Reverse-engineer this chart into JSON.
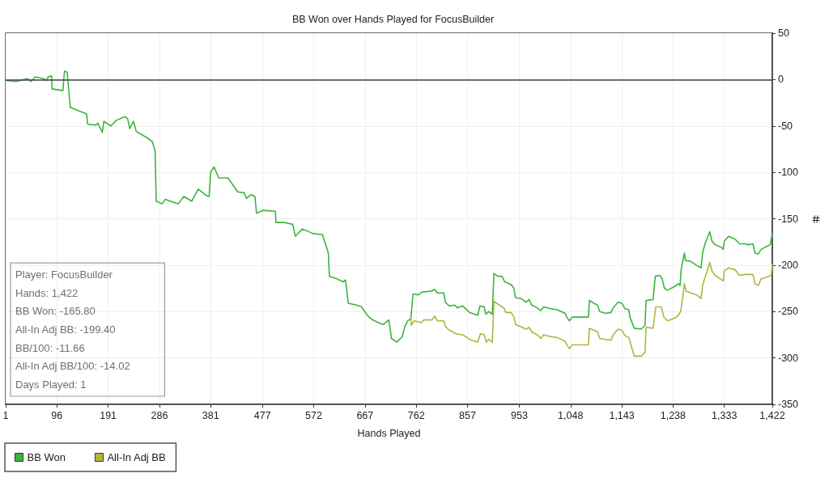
{
  "chart_data": {
    "type": "line",
    "title": "BB Won over Hands Played for FocusBuilder",
    "xlabel": "Hands Played",
    "xlim": [
      1,
      1422
    ],
    "xticks": [
      1,
      96,
      191,
      286,
      381,
      477,
      572,
      667,
      762,
      857,
      953,
      {
        "value": 1048,
        "label": "1,048"
      },
      {
        "value": 1143,
        "label": "1,143"
      },
      {
        "value": 1238,
        "label": "1,238"
      },
      {
        "value": 1333,
        "label": "1,333"
      },
      {
        "value": 1422,
        "label": "1,422"
      }
    ],
    "ylim": [
      -350,
      50
    ],
    "yticks": [
      -350,
      -300,
      -250,
      -200,
      -150,
      -100,
      -50,
      0,
      50
    ],
    "grid": true,
    "legend": "bottom left",
    "ref_lines": [
      {
        "axis": "y",
        "value": 0,
        "color": "#404040"
      }
    ],
    "annotations": [
      "Player: FocusBuilder",
      "Hands: 1,422",
      "BB Won: -165.80",
      "All-In Adj BB: -199.40",
      "BB/100: -11.66",
      "All-In Adj BB/100: -14.02",
      "Days Played: 1"
    ],
    "series": [
      {
        "name": "BB Won",
        "color": "#3cb43c",
        "x": [
          1,
          21,
          41,
          48,
          56,
          71,
          77,
          80,
          86,
          87,
          107,
          110,
          115,
          117,
          121,
          133,
          151,
          153,
          168,
          172,
          180,
          183,
          196,
          206,
          222,
          227,
          231,
          238,
          243,
          261,
          273,
          278,
          280,
          291,
          297,
          321,
          331,
          346,
          358,
          373,
          378,
          381,
          387,
          396,
          413,
          431,
          443,
          447,
          456,
          463,
          466,
          478,
          501,
          502,
          516,
          533,
          538,
          551,
          571,
          588,
          593,
          599,
          601,
          616,
          626,
          631,
          636,
          651,
          661,
          671,
          681,
          696,
          701,
          711,
          713,
          716,
          726,
          736,
          741,
          746,
          752,
          756,
          766,
          773,
          790,
          796,
          801,
          813,
          816,
          823,
          833,
          838,
          848,
          861,
          876,
          880,
          888,
          891,
          896,
          903,
          906,
          913,
          921,
          926,
          938,
          943,
          946,
          956,
          966,
          971,
          976,
          986,
          993,
          998,
          1011,
          1023,
          1038,
          1041,
          1046,
          1051,
          1081,
          1083,
          1091,
          1098,
          1102,
          1113,
          1123,
          1127,
          1136,
          1143,
          1149,
          1156,
          1158,
          1166,
          1179,
          1186,
          1188,
          1201,
          1205,
          1213,
          1218,
          1222,
          1228,
          1241,
          1248,
          1251,
          1253,
          1259,
          1261,
          1271,
          1281,
          1290,
          1293,
          1298,
          1306,
          1310,
          1316,
          1328,
          1331,
          1333,
          1341,
          1353,
          1361,
          1371,
          1378,
          1386,
          1390,
          1396,
          1401,
          1411,
          1418,
          1422
        ],
        "values": [
          -1,
          -2,
          1,
          -2,
          3,
          1,
          -1,
          3,
          4,
          -10,
          -12,
          9,
          8,
          -6,
          -30,
          -33,
          -37,
          -48,
          -49,
          -47,
          -57,
          -45,
          -50,
          -44,
          -40,
          -42,
          -53,
          -45,
          -56,
          -62,
          -67,
          -77,
          -131,
          -134,
          -129,
          -134,
          -126,
          -131,
          -118,
          -125,
          -126,
          -100,
          -94,
          -106,
          -106,
          -121,
          -122,
          -128,
          -124,
          -126,
          -144,
          -141,
          -142,
          -154,
          -154,
          -156,
          -169,
          -161,
          -166,
          -167,
          -176,
          -187,
          -212,
          -215,
          -218,
          -216,
          -241,
          -243,
          -245,
          -254,
          -259,
          -263,
          -264,
          -259,
          -266,
          -279,
          -283,
          -277,
          -266,
          -260,
          -258,
          -231,
          -232,
          -229,
          -228,
          -226,
          -230,
          -230,
          -240,
          -244,
          -243,
          -246,
          -244,
          -251,
          -254,
          -244,
          -245,
          -253,
          -250,
          -253,
          -209,
          -212,
          -212,
          -218,
          -221,
          -225,
          -235,
          -236,
          -240,
          -237,
          -243,
          -246,
          -249,
          -245,
          -247,
          -248,
          -252,
          -256,
          -260,
          -256,
          -256,
          -238,
          -241,
          -243,
          -250,
          -252,
          -251,
          -246,
          -240,
          -241,
          -247,
          -248,
          -256,
          -268,
          -269,
          -265,
          -238,
          -237,
          -212,
          -211,
          -215,
          -225,
          -227,
          -223,
          -220,
          -222,
          -205,
          -187,
          -195,
          -196,
          -200,
          -203,
          -186,
          -176,
          -164,
          -174,
          -178,
          -181,
          -183,
          -174,
          -169,
          -172,
          -177,
          -177,
          -178,
          -177,
          -187,
          -188,
          -183,
          -180,
          -178,
          -166
        ]
      },
      {
        "name": "All-In Adj BB",
        "color": "#b4b43c",
        "x": [
          752,
          753,
          758,
          771,
          776,
          791,
          796,
          801,
          813,
          816,
          823,
          836,
          848,
          861,
          876,
          881,
          888,
          892,
          896,
          903,
          906,
          916,
          924,
          928,
          938,
          943,
          946,
          966,
          971,
          976,
          986,
          993,
          998,
          1011,
          1023,
          1038,
          1041,
          1046,
          1051,
          1081,
          1083,
          1091,
          1098,
          1102,
          1113,
          1123,
          1127,
          1136,
          1143,
          1149,
          1156,
          1160,
          1166,
          1179,
          1186,
          1188,
          1201,
          1206,
          1216,
          1221,
          1228,
          1241,
          1248,
          1252,
          1256,
          1259,
          1262,
          1271,
          1281,
          1290,
          1293,
          1298,
          1306,
          1310,
          1316,
          1331,
          1333,
          1341,
          1353,
          1361,
          1371,
          1386,
          1390,
          1396,
          1401,
          1411,
          1420,
          1422
        ],
        "values": [
          -258,
          -265,
          -260,
          -262,
          -259,
          -259,
          -255,
          -260,
          -260,
          -266,
          -270,
          -274,
          -275,
          -280,
          -283,
          -274,
          -275,
          -283,
          -280,
          -283,
          -239,
          -243,
          -246,
          -251,
          -251,
          -256,
          -264,
          -269,
          -267,
          -272,
          -275,
          -279,
          -275,
          -277,
          -278,
          -282,
          -286,
          -290,
          -286,
          -286,
          -268,
          -270,
          -272,
          -279,
          -280,
          -281,
          -275,
          -269,
          -270,
          -276,
          -278,
          -286,
          -298,
          -298,
          -294,
          -267,
          -268,
          -245,
          -245,
          -256,
          -260,
          -257,
          -254,
          -250,
          -234,
          -220,
          -228,
          -230,
          -232,
          -236,
          -221,
          -212,
          -197,
          -206,
          -211,
          -217,
          -206,
          -203,
          -205,
          -211,
          -210,
          -210,
          -220,
          -222,
          -215,
          -213,
          -211,
          -199
        ]
      }
    ]
  }
}
